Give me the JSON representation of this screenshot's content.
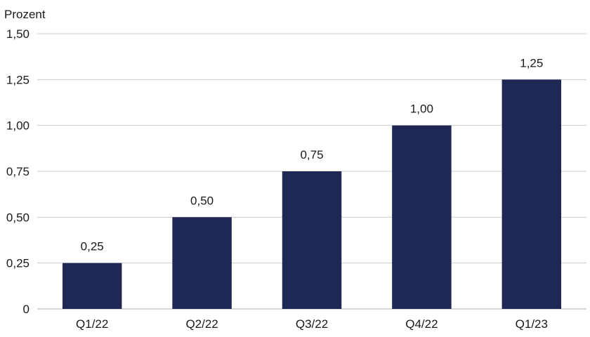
{
  "chart_data": {
    "type": "bar",
    "title": "",
    "xlabel": "",
    "ylabel": "Prozent",
    "categories": [
      "Q1/22",
      "Q2/22",
      "Q3/22",
      "Q4/22",
      "Q1/23"
    ],
    "values": [
      0.25,
      0.5,
      0.75,
      1.0,
      1.25
    ],
    "data_labels": [
      "0,25",
      "0,50",
      "0,75",
      "1,00",
      "1,25"
    ],
    "ylim": [
      0,
      1.5
    ],
    "yticks": [
      0,
      0.25,
      0.5,
      0.75,
      1.0,
      1.25,
      1.5
    ],
    "ytick_labels": [
      "0",
      "0,25",
      "0,50",
      "0,75",
      "1,00",
      "1,25",
      "1,50"
    ],
    "grid": true,
    "legend": "none",
    "bar_color": "#1f2855"
  }
}
